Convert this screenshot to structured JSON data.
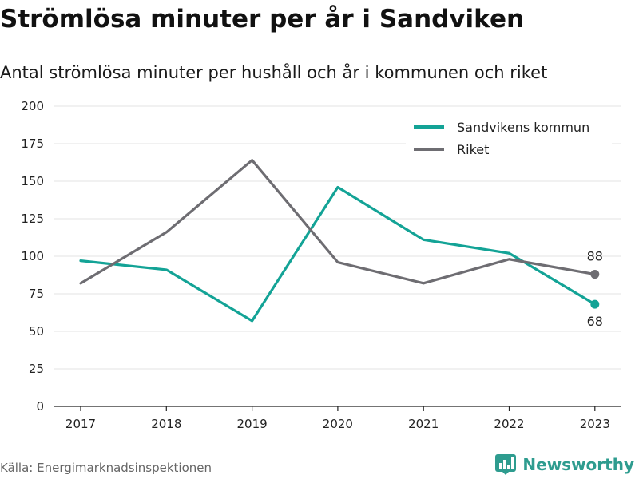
{
  "header": {
    "title": "Strömlösa minuter per år i Sandviken",
    "subtitle": "Antal strömlösa minuter per hushåll och år i kommunen och riket"
  },
  "footer": {
    "source": "Källa: Energimarknadsinspektionen",
    "brand": "Newsworthy",
    "brand_icon": "bar-chart-logo-icon",
    "brand_color": "#2e9c8f"
  },
  "chart_data": {
    "type": "line",
    "x": [
      "2017",
      "2018",
      "2019",
      "2020",
      "2021",
      "2022",
      "2023"
    ],
    "ylim": [
      0,
      200
    ],
    "yticks": [
      "0",
      "25",
      "50",
      "75",
      "100",
      "125",
      "150",
      "175",
      "200"
    ],
    "grid": true,
    "legend_position": "top-right",
    "series": [
      {
        "name": "Sandvikens kommun",
        "color": "#13a396",
        "values": [
          97,
          91,
          57,
          146,
          111,
          102,
          68
        ],
        "end_label": "68"
      },
      {
        "name": "Riket",
        "color": "#6e6d72",
        "values": [
          82,
          116,
          164,
          96,
          82,
          98,
          88
        ],
        "end_label": "88"
      }
    ]
  }
}
